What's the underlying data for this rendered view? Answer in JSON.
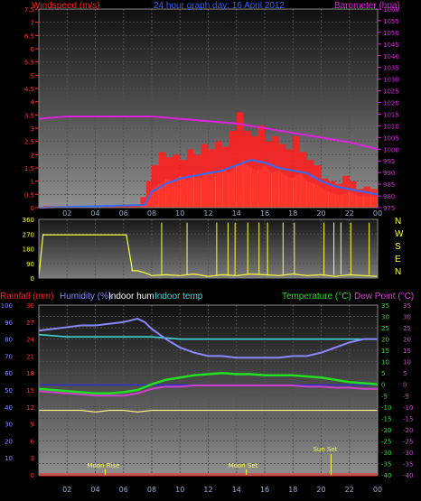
{
  "colors": {
    "wind_speed": "#ff2020",
    "wind_avg": "#2c6cff",
    "gust_fill": "#ffff90",
    "barometer": "#e020e0",
    "direction": "#ffff40",
    "rain": "#ff2020",
    "humidity": "#8888ff",
    "indoor_hum": "#ffffff",
    "indoor_temp": "#40e0e0",
    "temperature": "#20e020",
    "dew_point": "#d040d0",
    "xtick": "#9aa8c8",
    "background_top": "#101010",
    "background_bottom": "#909090"
  },
  "charts": [
    {
      "type": "line",
      "title": "24 hour graph day: 16 April 2012",
      "left_axis_label": "Windspeed (m/s)",
      "right_axis_label": "Barometer (hpa)",
      "left_ticks": [
        "0",
        "0.5",
        "1",
        "1.5",
        "2",
        "2.5",
        "3",
        "3.5",
        "4",
        "4.5",
        "5",
        "5.5",
        "6",
        "6.5",
        "7",
        "7.5"
      ],
      "right_ticks": [
        "975",
        "980",
        "985",
        "990",
        "995",
        "1000",
        "1005",
        "1010",
        "1015",
        "1020",
        "1025",
        "1030",
        "1035",
        "1040",
        "1045",
        "1050",
        "1055",
        "1060"
      ],
      "x_ticks": [
        "02",
        "04",
        "06",
        "08",
        "10",
        "12",
        "14",
        "16",
        "18",
        "20",
        "22",
        "00"
      ],
      "ylim_left": [
        0,
        7.5
      ],
      "ylim_right": [
        975,
        1060
      ],
      "xlim": [
        0,
        24
      ],
      "series": [
        {
          "name": "Barometer",
          "axis": "right",
          "x": [
            0,
            2,
            4,
            6,
            8,
            10,
            12,
            14,
            16,
            18,
            20,
            22,
            24
          ],
          "y": [
            1013,
            1014,
            1014,
            1014,
            1014,
            1013,
            1012,
            1011,
            1009,
            1007,
            1005,
            1003,
            1000
          ]
        },
        {
          "name": "Windspeed",
          "axis": "left",
          "x": [
            0,
            7.2,
            7.6,
            8.0,
            8.5,
            9.0,
            9.5,
            10,
            10.5,
            11,
            11.5,
            12,
            12.5,
            13,
            13.5,
            14,
            14.5,
            15,
            15.5,
            16,
            16.5,
            17,
            17.5,
            18,
            18.5,
            19,
            19.5,
            20,
            20.5,
            21,
            21.5,
            22,
            22.5,
            23,
            23.5,
            24
          ],
          "y": [
            0,
            0,
            0.4,
            1.0,
            1.6,
            2.1,
            1.9,
            2.0,
            1.8,
            2.2,
            2.0,
            2.4,
            2.2,
            2.5,
            2.3,
            2.9,
            3.6,
            2.9,
            2.7,
            3.1,
            2.5,
            2.7,
            2.4,
            2.2,
            2.7,
            2.1,
            1.8,
            1.6,
            1.1,
            1.0,
            0.9,
            1.2,
            1.0,
            0.7,
            0.8,
            0.7
          ]
        },
        {
          "name": "Average speed",
          "axis": "left",
          "x": [
            0,
            7.5,
            8,
            9,
            10,
            11,
            12,
            13,
            14,
            15,
            16,
            17,
            18,
            19,
            20,
            21,
            22,
            23,
            24
          ],
          "y": [
            0,
            0.1,
            0.6,
            0.9,
            1.1,
            1.2,
            1.3,
            1.4,
            1.6,
            1.8,
            1.7,
            1.5,
            1.4,
            1.3,
            1.0,
            0.8,
            0.7,
            0.6,
            0.5
          ]
        },
        {
          "name": "Gust",
          "axis": "left",
          "x": [
            0,
            7.2,
            7.6,
            8,
            8.5,
            9,
            9.5,
            10,
            10.5,
            11,
            11.5,
            12,
            12.5,
            13,
            13.5,
            14,
            14.5,
            15,
            15.5,
            16,
            16.5,
            17,
            17.5,
            18,
            18.5,
            19,
            19.5,
            20,
            20.5,
            21,
            21.5,
            22,
            22.5,
            23,
            23.5,
            24
          ],
          "y": [
            0,
            0,
            0.3,
            0.7,
            0.9,
            1.1,
            1.0,
            1.2,
            1.0,
            1.3,
            1.1,
            1.4,
            1.2,
            1.5,
            1.3,
            1.6,
            1.8,
            1.5,
            1.4,
            1.6,
            1.3,
            1.4,
            1.2,
            1.1,
            1.3,
            1.0,
            0.9,
            0.8,
            0.6,
            0.5,
            0.5,
            0.6,
            0.5,
            0.4,
            0.4,
            0.4
          ]
        }
      ]
    },
    {
      "type": "line",
      "left_ticks": [
        "0",
        "90",
        "180",
        "270",
        "360"
      ],
      "right_letters": [
        "N",
        "W",
        "S",
        "E",
        "N"
      ],
      "ylim": [
        0,
        360
      ],
      "xlim": [
        0,
        24
      ],
      "series": [
        {
          "name": "Wind direction",
          "x": [
            0,
            0.3,
            0.3,
            6.2,
            6.2,
            6.6,
            6.6,
            7.0,
            7.6,
            8,
            9,
            10,
            11,
            12,
            13,
            14,
            15,
            16,
            17,
            18,
            19,
            20,
            21,
            22,
            23,
            24
          ],
          "y": [
            10,
            270,
            265,
            265,
            265,
            60,
            45,
            45,
            30,
            15,
            20,
            15,
            25,
            10,
            20,
            15,
            25,
            20,
            15,
            25,
            15,
            20,
            10,
            20,
            15,
            10
          ]
        }
      ]
    },
    {
      "type": "line",
      "left_axis_label_1": "Rainfall (mm)",
      "left_axis_label_2": "Humidity (%)",
      "left_axis_label_3": "Indoor hum",
      "left_axis_label_4": "Indoor temp",
      "right_axis_label_1": "Temperature (°C)",
      "right_axis_label_2": "Dew Point (°C)",
      "ticks_rain": [
        "0",
        "3",
        "6",
        "9",
        "12",
        "15",
        "18",
        "21",
        "24",
        "27",
        "30"
      ],
      "ticks_humidity": [
        "10",
        "20",
        "30",
        "40",
        "50",
        "60",
        "70",
        "80",
        "90",
        "100"
      ],
      "ticks_temp": [
        "-40",
        "-35",
        "-30",
        "-25",
        "-20",
        "-15",
        "-10",
        "-5",
        "0",
        "5",
        "10",
        "15",
        "20",
        "25",
        "30",
        "35"
      ],
      "x_ticks": [
        "02",
        "04",
        "06",
        "08",
        "10",
        "12",
        "14",
        "16",
        "18",
        "20",
        "22",
        "00"
      ],
      "annotations": [
        {
          "text": "Moon Rise",
          "x": 4.7
        },
        {
          "text": "Moon Set",
          "x": 14.7
        },
        {
          "text": "Sun Set",
          "x": 20.7
        }
      ],
      "ylim_humidity": [
        0,
        100
      ],
      "ylim_temp": [
        -40,
        35
      ],
      "xlim": [
        0,
        24
      ],
      "series": [
        {
          "name": "Humidity",
          "axis": "humidity",
          "x": [
            0,
            1,
            2,
            3,
            4,
            5,
            6,
            7,
            7.5,
            8,
            9,
            10,
            11,
            12,
            13,
            14,
            15,
            16,
            17,
            18,
            19,
            20,
            21,
            22,
            23,
            24
          ],
          "y": [
            85,
            86,
            87,
            88,
            88,
            89,
            90,
            92,
            90,
            86,
            80,
            75,
            72,
            70,
            70,
            69,
            69,
            69,
            69,
            70,
            70,
            72,
            75,
            78,
            80,
            80
          ]
        },
        {
          "name": "Indoor hum",
          "axis": "humidity",
          "x": [
            0,
            24
          ],
          "y": [
            53,
            53
          ]
        },
        {
          "name": "Indoor temp",
          "axis": "temp",
          "x": [
            0,
            2,
            4,
            6,
            8,
            10,
            12,
            14,
            16,
            18,
            20,
            22,
            24
          ],
          "y": [
            22,
            21,
            21,
            21,
            21,
            20,
            20,
            20,
            20,
            20,
            20,
            20,
            20
          ]
        },
        {
          "name": "Temperature",
          "axis": "temp",
          "x": [
            0,
            1,
            2,
            3,
            4,
            5,
            6,
            7,
            8,
            9,
            10,
            11,
            12,
            13,
            14,
            15,
            16,
            17,
            18,
            19,
            20,
            21,
            22,
            23,
            24
          ],
          "y": [
            -2,
            -2.5,
            -3,
            -3.5,
            -4,
            -4,
            -3.5,
            -2.5,
            0,
            2,
            3,
            4,
            4.5,
            5,
            4.5,
            4.5,
            4,
            4,
            4,
            3.5,
            3,
            2,
            1,
            0.5,
            0
          ]
        },
        {
          "name": "Dew Point",
          "axis": "temp",
          "x": [
            0,
            1,
            2,
            3,
            4,
            5,
            6,
            7,
            8,
            9,
            10,
            11,
            12,
            13,
            14,
            15,
            16,
            17,
            18,
            19,
            20,
            21,
            22,
            23,
            24
          ],
          "y": [
            -3,
            -3.5,
            -4,
            -4.5,
            -5,
            -5,
            -5,
            -4,
            -2,
            -1,
            -1,
            -0.5,
            -0.5,
            -0.5,
            -0.5,
            -0.5,
            -0.5,
            -0.5,
            -0.5,
            -1,
            -1,
            -1.5,
            -1.5,
            -2,
            -2
          ]
        },
        {
          "name": "Rainfall",
          "axis": "rain",
          "x": [
            0,
            24
          ],
          "y": [
            0,
            0
          ]
        },
        {
          "name": "Indoor hum dots",
          "axis": "humidity",
          "x": [
            0,
            1,
            2,
            3,
            4,
            5,
            6,
            7,
            8,
            9,
            10,
            11,
            12,
            13,
            14,
            15,
            16,
            17,
            18,
            19,
            20,
            21,
            22,
            23,
            24
          ],
          "y": [
            38,
            38,
            38,
            38,
            37,
            38,
            38,
            37,
            38,
            38,
            38,
            38,
            38,
            38,
            38,
            38,
            38,
            38,
            38,
            38,
            38,
            38,
            38,
            38,
            38
          ]
        }
      ]
    }
  ]
}
